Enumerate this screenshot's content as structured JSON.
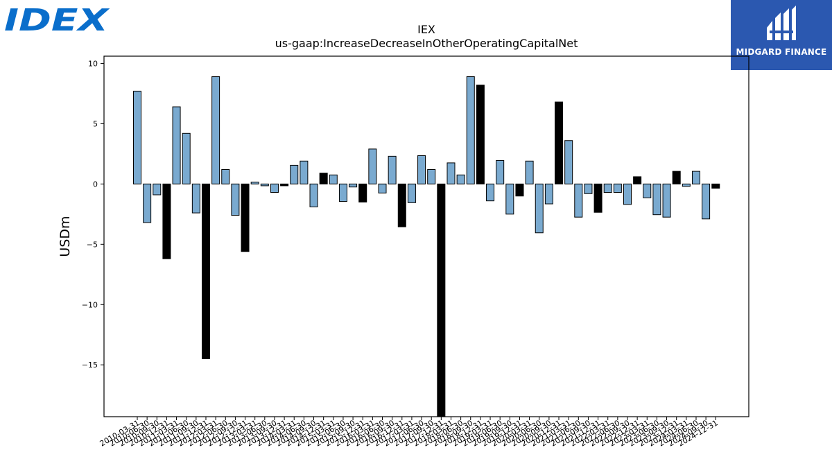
{
  "logos": {
    "left_text": "IDEX",
    "right_text": "MIDGARD FINANCE",
    "left_color": "#0a6ecb",
    "right_bg": "#2b58b0"
  },
  "chart_data": {
    "type": "bar",
    "title": "IEX",
    "subtitle": "us-gaap:IncreaseDecreaseInOtherOperatingCapitalNet",
    "xlabel": "",
    "ylabel": "USDm",
    "ylim": [
      -19.3,
      10.6
    ],
    "yticks": [
      10,
      5,
      0,
      -5,
      -10,
      -15
    ],
    "colors": {
      "q": "#7aaad0",
      "fy": "#000000"
    },
    "grid": false,
    "categories": [
      "2010-03-31",
      "2010-06-30",
      "2010-09-30",
      "2010-12-31",
      "2011-03-31",
      "2011-06-30",
      "2011-09-30",
      "2011-12-31",
      "2012-03-31",
      "2012-06-30",
      "2012-09-30",
      "2012-12-31",
      "2013-03-31",
      "2013-06-30",
      "2013-09-30",
      "2013-12-31",
      "2014-03-31",
      "2014-06-30",
      "2014-09-30",
      "2014-12-31",
      "2015-03-31",
      "2015-06-30",
      "2015-09-30",
      "2015-12-31",
      "2016-03-31",
      "2016-06-30",
      "2016-09-30",
      "2016-12-31",
      "2017-03-31",
      "2017-06-30",
      "2017-09-30",
      "2017-12-31",
      "2018-03-31",
      "2018-06-30",
      "2018-09-30",
      "2018-12-31",
      "2019-03-31",
      "2019-06-30",
      "2019-09-30",
      "2019-12-31",
      "2020-03-31",
      "2020-06-30",
      "2020-09-30",
      "2020-12-31",
      "2021-03-31",
      "2021-06-30",
      "2021-09-30",
      "2021-12-31",
      "2022-03-31",
      "2022-06-30",
      "2022-09-30",
      "2022-12-31",
      "2023-03-31",
      "2023-06-30",
      "2023-09-30",
      "2023-12-31",
      "2024-03-31",
      "2024-06-30",
      "2024-09-30",
      "2024-12-31"
    ],
    "tick_labels": [
      "2010-03-31",
      "2010-06-30",
      "2010-09-30",
      "2010-12-31",
      "2011-03-31",
      "2011-06-30",
      "2011-09-30",
      "2011-12-31",
      "2012-03-31",
      "2012-06-30",
      "2012-09-30",
      "2012-12-31",
      "2013-03-31",
      "2013-06-30",
      "2013-09-30",
      "2013-12-31",
      "2014-03-31",
      "2014-06-30",
      "2014-09-30",
      "2014-12-31",
      "2015-03-31",
      "2015-06-30",
      "2015-09-30",
      "2015-12-31",
      "2016-03-31",
      "2016-06-30",
      "2016-09-30",
      "2016-12-31",
      "2017-03-31",
      "2017-06-30",
      "2017-09-30",
      "2017-12-31",
      "2018-03-31",
      "2018-06-30",
      "2018-09-30",
      "2018-12-31",
      "2019-03-31",
      "2019-06-30",
      "2019-09-30",
      "2019-12-31",
      "2020-03-31",
      "2020-06-30",
      "2020-09-30",
      "2020-12-31",
      "2021-03-31",
      "2021-06-30",
      "2021-09-30",
      "2021-12-31",
      "2022-03-31",
      "2022-06-30",
      "2022-09-30",
      "2022-12-31",
      "2023-03-31",
      "2023-06-30",
      "2023-09-30",
      "2023-12-31",
      "2024-03-31",
      "2024-06-30",
      "2024-09-30",
      "2024-12-31"
    ],
    "values": [
      7.7,
      -3.2,
      -0.9,
      -6.2,
      6.4,
      4.2,
      -2.4,
      -14.5,
      8.9,
      1.2,
      -2.6,
      -5.6,
      0.15,
      -0.15,
      -0.7,
      -0.15,
      1.55,
      1.9,
      -1.9,
      0.9,
      0.75,
      -1.45,
      -0.25,
      -1.5,
      2.9,
      -0.75,
      2.3,
      -3.55,
      -1.55,
      2.35,
      1.2,
      -19.3,
      1.75,
      0.75,
      8.9,
      8.2,
      -1.4,
      1.95,
      -2.5,
      -1.0,
      1.9,
      -4.05,
      -1.65,
      6.8,
      3.6,
      -2.75,
      -0.8,
      -2.35,
      -0.7,
      -0.7,
      -1.7,
      0.6,
      -1.15,
      -2.55,
      -2.75,
      1.05,
      -0.2,
      1.05,
      -2.9,
      -0.35
    ],
    "fy": [
      false,
      false,
      false,
      true,
      false,
      false,
      false,
      true,
      false,
      false,
      false,
      true,
      false,
      false,
      false,
      true,
      false,
      false,
      false,
      true,
      false,
      false,
      false,
      true,
      false,
      false,
      false,
      true,
      false,
      false,
      false,
      true,
      false,
      false,
      false,
      true,
      false,
      false,
      false,
      true,
      false,
      false,
      false,
      true,
      false,
      false,
      false,
      true,
      false,
      false,
      false,
      true,
      false,
      false,
      false,
      true,
      false,
      false,
      false,
      true
    ]
  }
}
